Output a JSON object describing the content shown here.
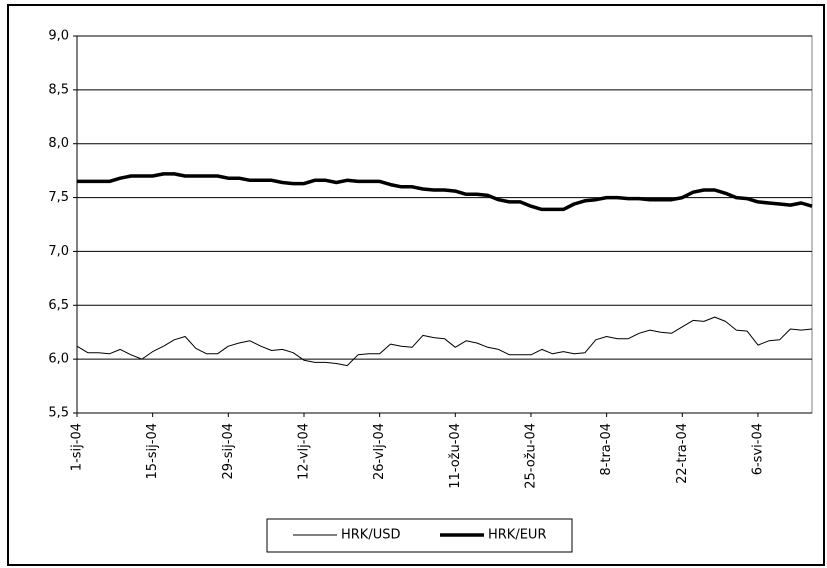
{
  "chart_data": {
    "type": "line",
    "categories": [
      "1-sij-04",
      null,
      null,
      null,
      null,
      null,
      null,
      "15-sij-04",
      null,
      null,
      null,
      null,
      null,
      null,
      "29-sij-04",
      null,
      null,
      null,
      null,
      null,
      null,
      "12-vlj-04",
      null,
      null,
      null,
      null,
      null,
      null,
      "26-vlj-04",
      null,
      null,
      null,
      null,
      null,
      null,
      "11-ožu-04",
      null,
      null,
      null,
      null,
      null,
      null,
      "25-ožu-04",
      null,
      null,
      null,
      null,
      null,
      null,
      "8-tra-04",
      null,
      null,
      null,
      null,
      null,
      null,
      "22-tra-04",
      null,
      null,
      null,
      null,
      null,
      null,
      "6-svi-04",
      null,
      null,
      null,
      null,
      null
    ],
    "series": [
      {
        "name": "HRK/USD",
        "color": "#000000",
        "line_width": 1,
        "values": [
          6.12,
          6.06,
          6.06,
          6.05,
          6.09,
          6.04,
          6.0,
          6.07,
          6.12,
          6.18,
          6.21,
          6.1,
          6.05,
          6.05,
          6.12,
          6.15,
          6.17,
          6.12,
          6.08,
          6.09,
          6.06,
          5.99,
          5.97,
          5.97,
          5.96,
          5.94,
          6.04,
          6.05,
          6.05,
          6.14,
          6.12,
          6.11,
          6.22,
          6.2,
          6.19,
          6.11,
          6.17,
          6.15,
          6.11,
          6.09,
          6.04,
          6.04,
          6.04,
          6.09,
          6.05,
          6.07,
          6.05,
          6.06,
          6.18,
          6.21,
          6.19,
          6.19,
          6.24,
          6.27,
          6.25,
          6.24,
          6.3,
          6.36,
          6.35,
          6.39,
          6.35,
          6.27,
          6.26,
          6.13,
          6.17,
          6.18,
          6.28,
          6.27,
          6.28
        ]
      },
      {
        "name": "HRK/EUR",
        "color": "#000000",
        "line_width": 3.5,
        "values": [
          7.65,
          7.65,
          7.65,
          7.65,
          7.68,
          7.7,
          7.7,
          7.7,
          7.72,
          7.72,
          7.7,
          7.7,
          7.7,
          7.7,
          7.68,
          7.68,
          7.66,
          7.66,
          7.66,
          7.64,
          7.63,
          7.63,
          7.66,
          7.66,
          7.64,
          7.66,
          7.65,
          7.65,
          7.65,
          7.62,
          7.6,
          7.6,
          7.58,
          7.57,
          7.57,
          7.56,
          7.53,
          7.53,
          7.52,
          7.48,
          7.46,
          7.46,
          7.42,
          7.39,
          7.39,
          7.39,
          7.44,
          7.47,
          7.48,
          7.5,
          7.5,
          7.49,
          7.49,
          7.48,
          7.48,
          7.48,
          7.5,
          7.55,
          7.57,
          7.57,
          7.54,
          7.5,
          7.49,
          7.46,
          7.45,
          7.44,
          7.43,
          7.45,
          7.42
        ]
      }
    ],
    "ylim": [
      5.5,
      9.0
    ],
    "yticks": [
      {
        "value": 5.5,
        "label": "5,5"
      },
      {
        "value": 6.0,
        "label": "6,0"
      },
      {
        "value": 6.5,
        "label": "6,5"
      },
      {
        "value": 7.0,
        "label": "7,0"
      },
      {
        "value": 7.5,
        "label": "7,5"
      },
      {
        "value": 8.0,
        "label": "8,0"
      },
      {
        "value": 8.5,
        "label": "8,5"
      },
      {
        "value": 9.0,
        "label": "9,0"
      }
    ],
    "grid": true,
    "legend": "bottom"
  }
}
